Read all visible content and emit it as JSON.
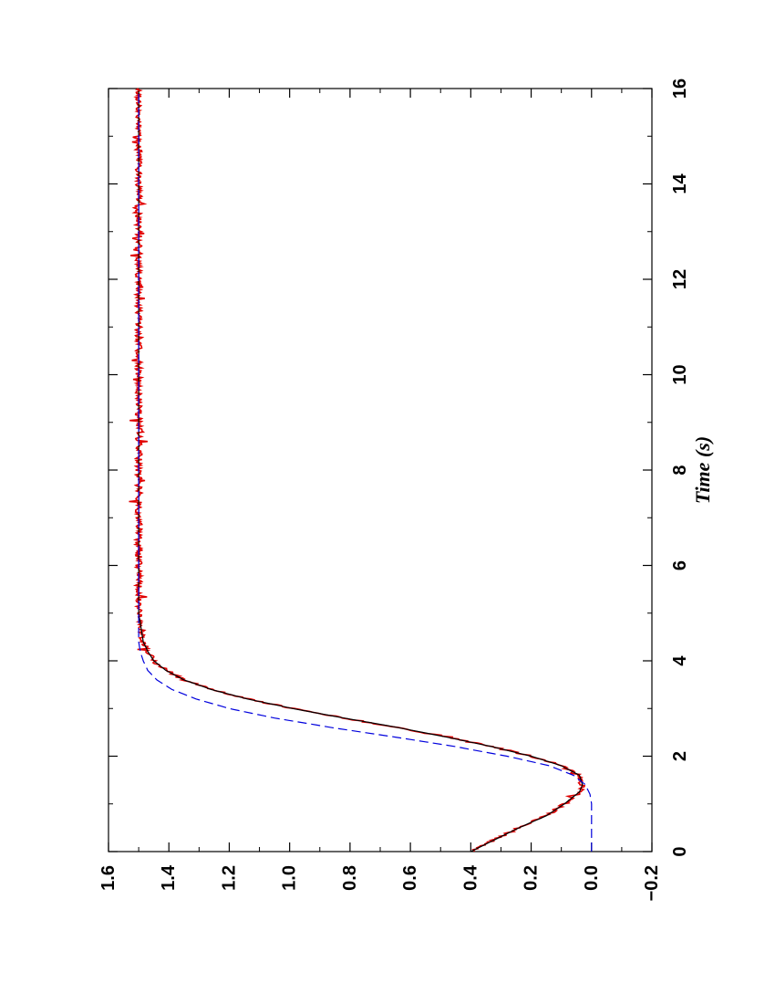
{
  "chart_data": {
    "type": "line",
    "orientation": "rotated 90° (time axis runs bottom to top along the right edge)",
    "xlabel": "Time (s)",
    "ylabel": "",
    "xlim": [
      0,
      16
    ],
    "ylim": [
      -0.2,
      1.6
    ],
    "x_ticks": [
      "0",
      "2",
      "4",
      "6",
      "8",
      "10",
      "12",
      "14",
      "16"
    ],
    "y_ticks": [
      "−0.2",
      "0.0",
      "0.2",
      "0.4",
      "0.6",
      "0.8",
      "1.0",
      "1.2",
      "1.4",
      "1.6"
    ],
    "grid": false,
    "series": [
      {
        "style": "solid red, noisy",
        "color": "#e00000",
        "x": [
          0,
          0.25,
          0.5,
          0.75,
          1.0,
          1.25,
          1.4,
          1.6,
          1.8,
          2.0,
          2.2,
          2.4,
          2.6,
          2.8,
          3.0,
          3.2,
          3.4,
          3.6,
          3.8,
          4.0,
          4.2,
          4.4,
          4.6,
          4.8,
          5.0,
          6,
          8,
          10,
          12,
          14,
          16
        ],
        "y": [
          0.4,
          0.32,
          0.24,
          0.15,
          0.09,
          0.04,
          0.03,
          0.04,
          0.1,
          0.2,
          0.33,
          0.48,
          0.64,
          0.82,
          0.99,
          1.14,
          1.26,
          1.35,
          1.41,
          1.45,
          1.47,
          1.485,
          1.49,
          1.495,
          1.5,
          1.5,
          1.5,
          1.5,
          1.5,
          1.5,
          1.5
        ]
      },
      {
        "style": "solid black, smooth",
        "color": "#000000",
        "x": [
          0,
          0.25,
          0.5,
          0.75,
          1.0,
          1.25,
          1.4,
          1.6,
          1.8,
          2.0,
          2.2,
          2.4,
          2.6,
          2.8,
          3.0,
          3.2,
          3.4,
          3.6,
          3.8,
          4.0,
          4.2,
          4.4,
          4.6,
          4.8,
          5.0,
          6,
          8,
          10,
          12,
          14,
          16
        ],
        "y": [
          0.4,
          0.32,
          0.24,
          0.15,
          0.09,
          0.04,
          0.03,
          0.04,
          0.1,
          0.2,
          0.33,
          0.48,
          0.64,
          0.82,
          0.99,
          1.14,
          1.26,
          1.35,
          1.41,
          1.45,
          1.47,
          1.485,
          1.49,
          1.495,
          1.5,
          1.5,
          1.5,
          1.5,
          1.5,
          1.5,
          1.5
        ]
      },
      {
        "style": "dashed blue",
        "color": "#0000dd",
        "x": [
          0,
          0.5,
          1.0,
          1.2,
          1.4,
          1.6,
          1.8,
          2.0,
          2.2,
          2.4,
          2.6,
          2.8,
          3.0,
          3.2,
          3.4,
          3.6,
          3.8,
          4.0,
          4.2,
          4.4,
          4.6,
          5.0,
          6,
          8,
          10,
          12,
          14,
          16
        ],
        "y": [
          0.0,
          0.0,
          0.0,
          0.005,
          0.02,
          0.06,
          0.14,
          0.28,
          0.45,
          0.65,
          0.86,
          1.05,
          1.2,
          1.31,
          1.39,
          1.44,
          1.47,
          1.485,
          1.495,
          1.5,
          1.5,
          1.5,
          1.5,
          1.5,
          1.5,
          1.5,
          1.5,
          1.5
        ]
      }
    ]
  }
}
